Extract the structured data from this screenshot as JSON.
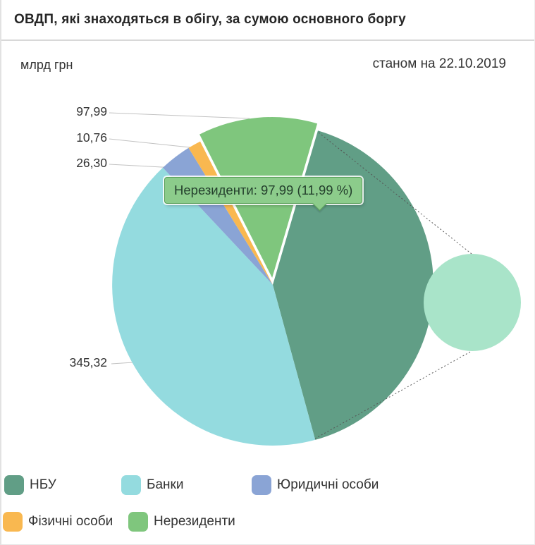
{
  "header": {
    "title": "ОВДП, які знаходяться в обігу, за сумою основного боргу"
  },
  "meta": {
    "unit_label": "млрд грн",
    "date_label": "станом на 22.10.2019"
  },
  "tooltip": {
    "text": "Нерезиденти: 97,99 (11,99 %)",
    "bg": "#8ccc8b",
    "border": "#5a9f5a",
    "text_color": "#24402d"
  },
  "chart_data": {
    "type": "pie",
    "title": "ОВДП, які знаходяться в обігу, за сумою основного боргу",
    "unit": "млрд грн",
    "as_of": "станом на 22.10.2019",
    "start_angle_deg": 16.3,
    "legend_position": "bottom",
    "detail_circle_color": "#a9e4c9",
    "series": [
      {
        "name": "НБУ",
        "value": 336.9,
        "color": "#619e86",
        "label": ""
      },
      {
        "name": "Банки",
        "value": 345.32,
        "color": "#94dbdf",
        "label": "345,32"
      },
      {
        "name": "Юридичні особи",
        "value": 26.3,
        "color": "#8aa4d5",
        "label": "26,30"
      },
      {
        "name": "Фізичні особи",
        "value": 10.76,
        "color": "#f9b850",
        "label": "10,76"
      },
      {
        "name": "Нерезиденти",
        "value": 97.99,
        "color": "#7fc67d",
        "label": "97,99",
        "sliced": true,
        "percent_label": "11,99 %"
      }
    ]
  }
}
